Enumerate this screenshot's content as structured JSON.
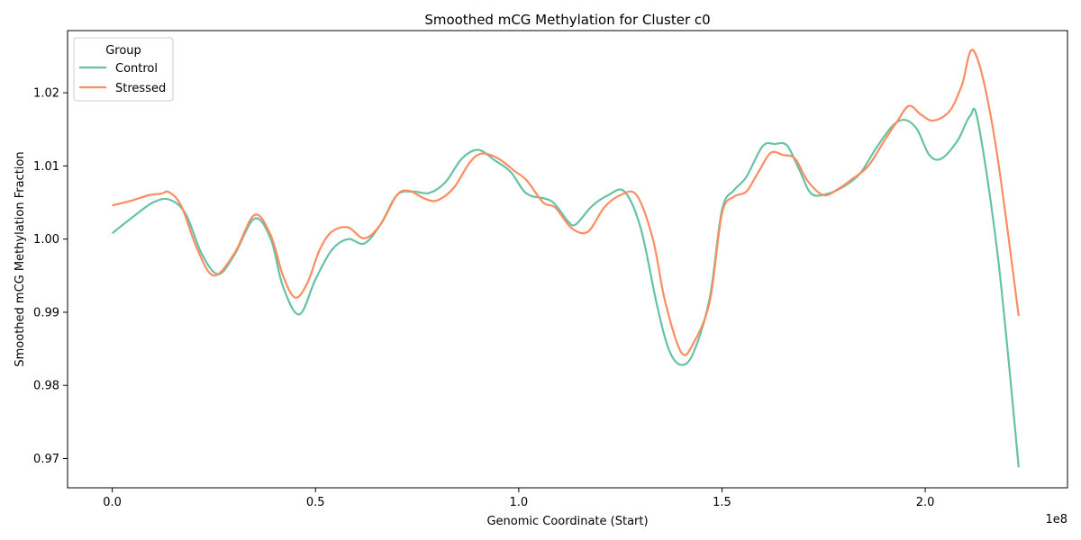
{
  "chart_data": {
    "type": "line",
    "title": "Smoothed mCG Methylation for Cluster c0",
    "xlabel": "Genomic Coordinate (Start)",
    "ylabel": "Smoothed mCG Methylation Fraction",
    "x_offset_label": "1e8",
    "xlim": [
      -0.11,
      2.35
    ],
    "ylim": [
      0.966,
      1.0285
    ],
    "x_ticks": [
      0.0,
      0.5,
      1.0,
      1.5,
      2.0
    ],
    "x_tick_labels": [
      "0.0",
      "0.5",
      "1.0",
      "1.5",
      "2.0"
    ],
    "y_ticks": [
      0.97,
      0.98,
      0.99,
      1.0,
      1.01,
      1.02
    ],
    "y_tick_labels": [
      "0.97",
      "0.98",
      "0.99",
      "1.00",
      "1.01",
      "1.02"
    ],
    "grid": false,
    "legend": {
      "title": "Group",
      "placement": "top-left"
    },
    "series": [
      {
        "name": "Control",
        "color": "#66c2a5",
        "x": [
          0,
          0.05,
          0.1,
          0.14,
          0.18,
          0.22,
          0.26,
          0.3,
          0.35,
          0.39,
          0.42,
          0.46,
          0.5,
          0.54,
          0.58,
          0.62,
          0.66,
          0.7,
          0.74,
          0.78,
          0.82,
          0.86,
          0.9,
          0.94,
          0.98,
          1.02,
          1.08,
          1.12,
          1.14,
          1.18,
          1.22,
          1.26,
          1.3,
          1.34,
          1.37,
          1.4,
          1.43,
          1.47,
          1.5,
          1.53,
          1.56,
          1.6,
          1.63,
          1.66,
          1.69,
          1.72,
          1.76,
          1.8,
          1.84,
          1.88,
          1.92,
          1.95,
          1.98,
          2.01,
          2.04,
          2.08,
          2.11,
          2.13,
          2.18,
          2.23
        ],
        "y": [
          1.0008,
          1.003,
          1.005,
          1.0054,
          1.0035,
          0.998,
          0.9952,
          0.9978,
          1.0028,
          1.0,
          0.9935,
          0.9897,
          0.9945,
          0.9985,
          1.0,
          0.9994,
          1.002,
          1.006,
          1.0065,
          1.0063,
          1.0078,
          1.011,
          1.0122,
          1.0108,
          1.0092,
          1.0062,
          1.0052,
          1.0025,
          1.002,
          1.0045,
          1.006,
          1.0065,
          1.0015,
          0.991,
          0.9848,
          0.9828,
          0.9845,
          0.992,
          1.004,
          1.0067,
          1.0085,
          1.0127,
          1.013,
          1.0128,
          1.0095,
          1.0062,
          1.0062,
          1.0072,
          1.009,
          1.0125,
          1.0155,
          1.0163,
          1.015,
          1.0115,
          1.011,
          1.0135,
          1.0168,
          1.016,
          0.997,
          0.9688
        ]
      },
      {
        "name": "Stressed",
        "color": "#fc8d62",
        "x": [
          0,
          0.05,
          0.09,
          0.12,
          0.14,
          0.17,
          0.21,
          0.25,
          0.3,
          0.35,
          0.39,
          0.42,
          0.45,
          0.48,
          0.51,
          0.54,
          0.58,
          0.62,
          0.66,
          0.7,
          0.73,
          0.77,
          0.8,
          0.84,
          0.88,
          0.91,
          0.95,
          0.99,
          1.02,
          1.06,
          1.09,
          1.13,
          1.17,
          1.21,
          1.25,
          1.29,
          1.33,
          1.36,
          1.4,
          1.43,
          1.47,
          1.5,
          1.53,
          1.56,
          1.59,
          1.62,
          1.65,
          1.68,
          1.71,
          1.75,
          1.79,
          1.82,
          1.86,
          1.9,
          1.93,
          1.96,
          1.99,
          2.02,
          2.06,
          2.09,
          2.12,
          2.17,
          2.23
        ],
        "y": [
          1.0046,
          1.0053,
          1.006,
          1.0062,
          1.0064,
          1.0045,
          0.9985,
          0.995,
          0.998,
          1.0033,
          1.0005,
          0.995,
          0.992,
          0.994,
          0.9985,
          1.001,
          1.0016,
          1.0001,
          1.002,
          1.006,
          1.0066,
          1.0055,
          1.0053,
          1.007,
          1.0105,
          1.0117,
          1.011,
          1.0093,
          1.008,
          1.005,
          1.0043,
          1.0015,
          1.001,
          1.0043,
          1.006,
          1.006,
          1.0,
          0.9915,
          0.9845,
          0.9858,
          0.9915,
          1.0035,
          1.0058,
          1.0065,
          1.0092,
          1.0118,
          1.0115,
          1.011,
          1.008,
          1.006,
          1.007,
          1.0082,
          1.01,
          1.0135,
          1.016,
          1.0182,
          1.017,
          1.0162,
          1.0175,
          1.021,
          1.0257,
          1.014,
          0.9895
        ]
      }
    ]
  }
}
